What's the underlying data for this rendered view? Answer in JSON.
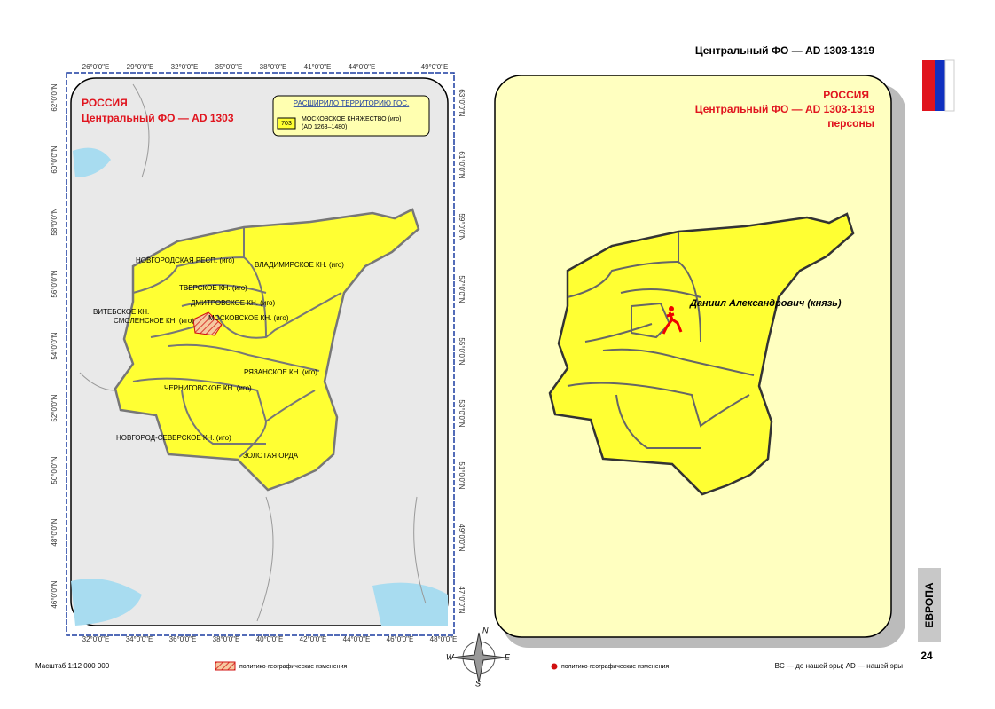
{
  "header": {
    "title": "Центральный ФО —  AD 1303-1319"
  },
  "left_map": {
    "top_ticks": [
      "26°0'0\"E",
      "29°0'0\"E",
      "32°0'0\"E",
      "35°0'0\"E",
      "38°0'0\"E",
      "41°0'0\"E",
      "44°0'0\"E",
      "49°0'0\"E"
    ],
    "bottom_ticks": [
      "32°0'0\"E",
      "34°0'0\"E",
      "36°0'0\"E",
      "38°0'0\"E",
      "40°0'0\"E",
      "42°0'0\"E",
      "44°0'0\"E",
      "46°0'0\"E",
      "48°0'0\"E"
    ],
    "left_ticks": [
      "62°0'0\"N",
      "60°0'0\"N",
      "58°0'0\"N",
      "56°0'0\"N",
      "54°0'0\"N",
      "52°0'0\"N",
      "50°0'0\"N",
      "48°0'0\"N",
      "46°0'0\"N"
    ],
    "right_ticks": [
      "63°0'0\"N",
      "61°0'0\"N",
      "59°0'0\"N",
      "57°0'0\"N",
      "55°0'0\"N",
      "53°0'0\"N",
      "51°0'0\"N",
      "49°0'0\"N",
      "47°0'0\"N"
    ],
    "title": [
      "РОССИЯ",
      "Центральный ФО — AD 1303"
    ],
    "legend": {
      "heading": "РАСШИРИЛО ТЕРРИТОРИЮ ГОС.",
      "code": "703",
      "name": "МОСКОВСКОЕ КНЯЖЕСТВО (иго)",
      "period": "(AD 1263–1480)"
    },
    "regions": [
      "НОВГОРОДСКАЯ РЕСП. (иго)",
      "ВЛАДИМИРСКОЕ КН. (иго)",
      "ТВЕРСКОЕ КН. (иго)",
      "ДМИТРОВСКОЕ КН. (иго)",
      "ВИТЕБСКОЕ КН.",
      "СМОЛЕНСКОЕ КН. (иго)",
      "МОСКОВСКОЕ КН. (иго)",
      "РЯЗАНСКОЕ КН. (иго)",
      "ЧЕРНИГОВСКОЕ КН. (иго)",
      "НОВГОРОД-СЕВЕРСКОЕ КН. (иго)",
      "ЗОЛОТАЯ ОРДА"
    ]
  },
  "right_map": {
    "title": [
      "РОССИЯ",
      "Центральный ФО — AD 1303-1319",
      "персоны"
    ],
    "person": "Даниил Александрович (князь)"
  },
  "compass": [
    "N",
    "W",
    "E",
    "S"
  ],
  "footer": {
    "scale": "Масштаб 1:12 000 000",
    "legend_left": "политико-географические изменения",
    "legend_right": "политико-географические изменения",
    "era_note": "BC — до нашей эры; AD — нашей эры",
    "section": "ЕВРОПА",
    "page": "24"
  }
}
